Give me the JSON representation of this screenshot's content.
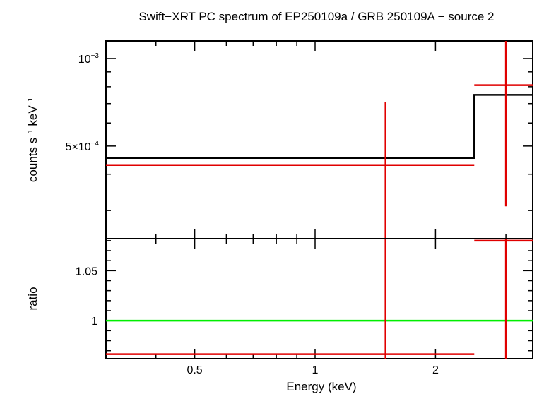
{
  "chart_data": {
    "type": "line",
    "title": "Swift−XRT PC spectrum of EP250109a / GRB 250109A − source 2",
    "xlabel": "Energy (keV)",
    "x_scale": "log",
    "xlim": [
      0.3,
      3.5
    ],
    "x_ticks": [
      {
        "value": 0.5,
        "label": "0.5"
      },
      {
        "value": 1,
        "label": "1"
      },
      {
        "value": 2,
        "label": "2"
      }
    ],
    "panels": [
      {
        "name": "spectrum",
        "ylabel_base": "counts s",
        "ylabel_exp1": "−1",
        "ylabel_mid": " keV",
        "ylabel_exp2": "−1",
        "y_scale": "log",
        "ylim": [
          0.00024,
          0.00115
        ],
        "y_ticks": [
          {
            "value": 0.0005,
            "mantissa": "5×10",
            "exp": "−4"
          },
          {
            "value": 0.001,
            "mantissa": "10",
            "exp": "−3"
          }
        ],
        "series": [
          {
            "name": "model",
            "color": "#000000",
            "style": "step",
            "bins": [
              {
                "x_lo": 0.3,
                "x_hi": 2.5,
                "y": 0.000455
              },
              {
                "x_lo": 2.5,
                "x_hi": 3.5,
                "y": 0.00075
              }
            ]
          },
          {
            "name": "data",
            "color": "#e00000",
            "style": "errorbar",
            "points": [
              {
                "x_lo": 0.3,
                "x_hi": 2.5,
                "x_center": 1.5,
                "y": 0.00043,
                "y_lo": 1e-07,
                "y_hi": 0.00071
              },
              {
                "x_lo": 2.5,
                "x_hi": 3.5,
                "x_center": 3.0,
                "y": 0.00081,
                "y_lo": 0.00031,
                "y_hi": 0.0013
              }
            ]
          }
        ]
      },
      {
        "name": "ratio",
        "ylabel": "ratio",
        "y_scale": "linear",
        "ylim": [
          0.962,
          1.082
        ],
        "y_ticks": [
          {
            "value": 1,
            "label": "1"
          },
          {
            "value": 1.05,
            "label": "1.05"
          }
        ],
        "reference_line": {
          "y": 1,
          "color": "#00ee00"
        },
        "series": [
          {
            "name": "ratio",
            "color": "#e00000",
            "style": "errorbar",
            "points": [
              {
                "x_lo": 0.3,
                "x_hi": 2.5,
                "x_center": 1.5,
                "y": 0.9665,
                "y_lo": 0.9,
                "y_hi": 1.2
              },
              {
                "x_lo": 2.5,
                "x_hi": 3.5,
                "x_center": 3.0,
                "y": 1.08,
                "y_lo": 0.9,
                "y_hi": 1.2
              }
            ]
          }
        ]
      }
    ]
  }
}
